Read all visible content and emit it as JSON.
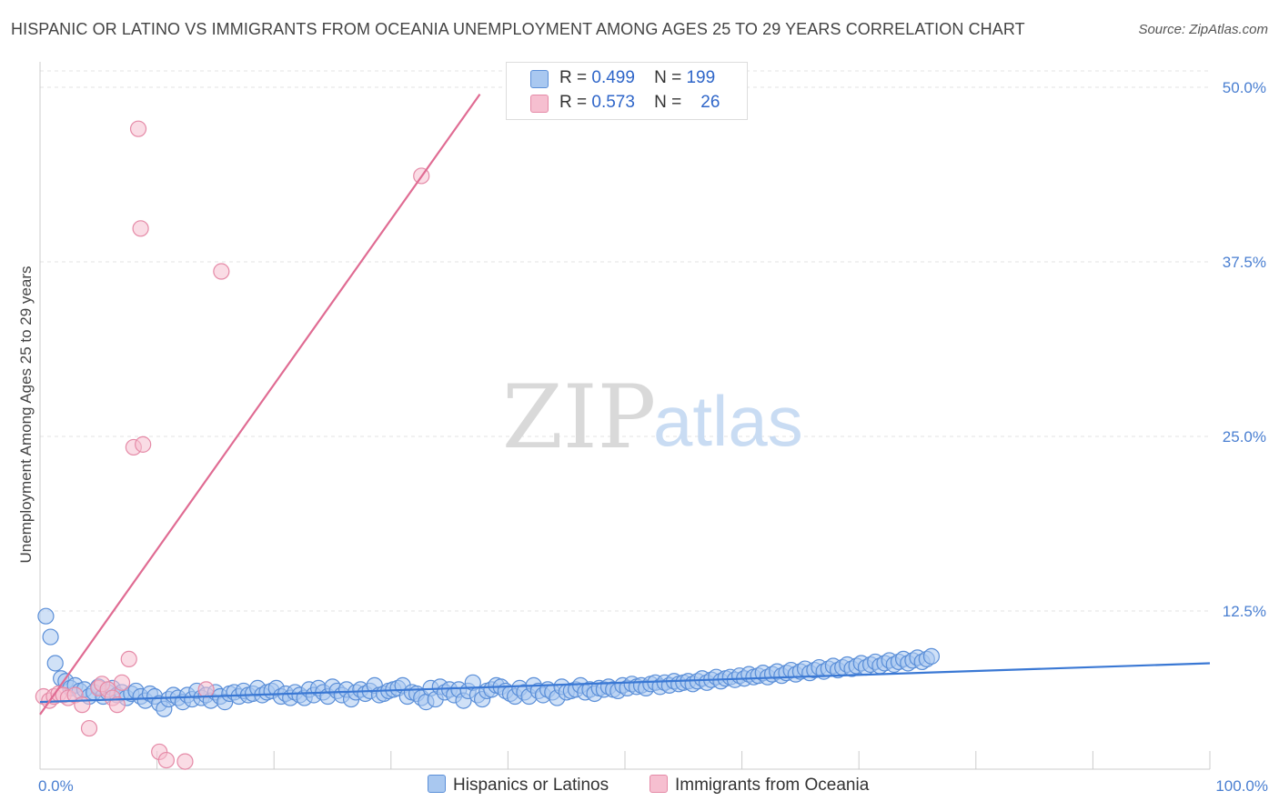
{
  "title": "HISPANIC OR LATINO VS IMMIGRANTS FROM OCEANIA UNEMPLOYMENT AMONG AGES 25 TO 29 YEARS CORRELATION CHART",
  "source": "Source: ZipAtlas.com",
  "watermark": {
    "zip": "ZIP",
    "atlas": "atlas"
  },
  "legend": {
    "rows": [
      {
        "r_label": "R =",
        "r_value": "0.499",
        "n_label": "N =",
        "n_value": "199",
        "color": "#a9c8f0",
        "edge": "#5b8fd8"
      },
      {
        "r_label": "R =",
        "r_value": "0.573",
        "n_label": "N =",
        "n_value": "26",
        "color": "#f6bfd0",
        "edge": "#e58aa7"
      }
    ]
  },
  "bottom_legend": [
    {
      "label": "Hispanics or Latinos",
      "color": "#a9c8f0",
      "edge": "#5b8fd8"
    },
    {
      "label": "Immigrants from Oceania",
      "color": "#f6bfd0",
      "edge": "#e58aa7"
    }
  ],
  "chart_data": {
    "type": "scatter",
    "title": "HISPANIC OR LATINO VS IMMIGRANTS FROM OCEANIA UNEMPLOYMENT AMONG AGES 25 TO 29 YEARS CORRELATION CHART",
    "xlabel": "",
    "ylabel": "Unemployment Among Ages 25 to 29 years",
    "xlim": [
      0,
      100
    ],
    "ylim": [
      0,
      50
    ],
    "x_ticks": [
      {
        "value": 0,
        "label": "0.0%"
      },
      {
        "value": 100,
        "label": "100.0%"
      }
    ],
    "y_ticks": [
      {
        "value": 12.5,
        "label": "12.5%"
      },
      {
        "value": 25,
        "label": "25.0%"
      },
      {
        "value": 37.5,
        "label": "37.5%"
      },
      {
        "value": 50,
        "label": "50.0%"
      }
    ],
    "grid": true,
    "legend_position": "top-center",
    "series": [
      {
        "name": "Hispanics or Latinos",
        "color": "#a9c8f0",
        "edge": "#5b8fd8",
        "line_color": "#3a78d4",
        "trend": {
          "x": [
            0,
            100
          ],
          "y": [
            6.1,
            8.9
          ]
        },
        "points": [
          [
            0.5,
            12.3
          ],
          [
            0.9,
            10.8
          ],
          [
            1.3,
            8.9
          ],
          [
            1.8,
            7.8
          ],
          [
            2.2,
            7.6
          ],
          [
            2.6,
            7.1
          ],
          [
            3.0,
            7.3
          ],
          [
            3.4,
            6.9
          ],
          [
            3.8,
            7.0
          ],
          [
            4.2,
            6.5
          ],
          [
            4.6,
            6.8
          ],
          [
            5.0,
            7.2
          ],
          [
            5.4,
            6.5
          ],
          [
            5.8,
            6.8
          ],
          [
            6.2,
            7.1
          ],
          [
            6.6,
            6.6
          ],
          [
            7.0,
            6.8
          ],
          [
            7.4,
            6.4
          ],
          [
            7.8,
            6.7
          ],
          [
            8.2,
            6.9
          ],
          [
            8.6,
            6.5
          ],
          [
            9.0,
            6.2
          ],
          [
            9.4,
            6.7
          ],
          [
            9.8,
            6.5
          ],
          [
            10.2,
            6.0
          ],
          [
            10.6,
            5.6
          ],
          [
            11.0,
            6.3
          ],
          [
            11.4,
            6.6
          ],
          [
            11.8,
            6.4
          ],
          [
            12.2,
            6.1
          ],
          [
            12.6,
            6.6
          ],
          [
            13.0,
            6.3
          ],
          [
            13.4,
            6.9
          ],
          [
            13.8,
            6.4
          ],
          [
            14.2,
            6.6
          ],
          [
            14.6,
            6.2
          ],
          [
            15.0,
            6.8
          ],
          [
            15.4,
            6.5
          ],
          [
            15.8,
            6.1
          ],
          [
            16.2,
            6.7
          ],
          [
            16.6,
            6.8
          ],
          [
            17.0,
            6.5
          ],
          [
            17.4,
            6.9
          ],
          [
            17.8,
            6.6
          ],
          [
            18.2,
            6.7
          ],
          [
            18.6,
            7.1
          ],
          [
            19.0,
            6.6
          ],
          [
            19.4,
            6.8
          ],
          [
            19.8,
            6.9
          ],
          [
            20.2,
            7.1
          ],
          [
            20.6,
            6.5
          ],
          [
            21.0,
            6.7
          ],
          [
            21.4,
            6.4
          ],
          [
            21.8,
            6.8
          ],
          [
            22.2,
            6.6
          ],
          [
            22.6,
            6.4
          ],
          [
            23.0,
            7.0
          ],
          [
            23.4,
            6.6
          ],
          [
            23.8,
            7.1
          ],
          [
            24.2,
            6.8
          ],
          [
            24.6,
            6.5
          ],
          [
            25.0,
            7.2
          ],
          [
            25.4,
            6.9
          ],
          [
            25.8,
            6.6
          ],
          [
            26.2,
            7.0
          ],
          [
            26.6,
            6.3
          ],
          [
            27.0,
            6.8
          ],
          [
            27.4,
            7.0
          ],
          [
            27.8,
            6.7
          ],
          [
            28.2,
            6.9
          ],
          [
            28.6,
            7.3
          ],
          [
            29.0,
            6.6
          ],
          [
            29.4,
            6.7
          ],
          [
            29.8,
            6.9
          ],
          [
            30.2,
            7.0
          ],
          [
            30.6,
            7.1
          ],
          [
            31.0,
            7.3
          ],
          [
            31.4,
            6.5
          ],
          [
            31.8,
            6.8
          ],
          [
            32.2,
            6.7
          ],
          [
            32.6,
            6.4
          ],
          [
            33.0,
            6.1
          ],
          [
            33.4,
            7.1
          ],
          [
            33.8,
            6.3
          ],
          [
            34.2,
            7.2
          ],
          [
            34.6,
            6.8
          ],
          [
            35.0,
            7.0
          ],
          [
            35.4,
            6.6
          ],
          [
            35.8,
            7.0
          ],
          [
            36.2,
            6.2
          ],
          [
            36.6,
            6.9
          ],
          [
            37.0,
            7.5
          ],
          [
            37.4,
            6.6
          ],
          [
            37.8,
            6.3
          ],
          [
            38.2,
            6.9
          ],
          [
            38.6,
            7.0
          ],
          [
            39.0,
            7.3
          ],
          [
            39.4,
            7.2
          ],
          [
            39.8,
            6.9
          ],
          [
            40.2,
            6.7
          ],
          [
            40.6,
            6.5
          ],
          [
            41.0,
            7.1
          ],
          [
            41.4,
            6.8
          ],
          [
            41.8,
            6.5
          ],
          [
            42.2,
            7.3
          ],
          [
            42.6,
            6.9
          ],
          [
            43.0,
            6.6
          ],
          [
            43.4,
            7.0
          ],
          [
            43.8,
            6.8
          ],
          [
            44.2,
            6.4
          ],
          [
            44.6,
            7.2
          ],
          [
            45.0,
            6.8
          ],
          [
            45.4,
            6.9
          ],
          [
            45.8,
            7.0
          ],
          [
            46.2,
            7.3
          ],
          [
            46.6,
            6.8
          ],
          [
            47.0,
            7.0
          ],
          [
            47.4,
            6.7
          ],
          [
            47.8,
            7.1
          ],
          [
            48.2,
            7.0
          ],
          [
            48.6,
            7.2
          ],
          [
            49.0,
            7.0
          ],
          [
            49.4,
            6.9
          ],
          [
            49.8,
            7.3
          ],
          [
            50.2,
            7.1
          ],
          [
            50.6,
            7.4
          ],
          [
            51.0,
            7.2
          ],
          [
            51.4,
            7.3
          ],
          [
            51.8,
            7.1
          ],
          [
            52.2,
            7.4
          ],
          [
            52.6,
            7.5
          ],
          [
            53.0,
            7.2
          ],
          [
            53.4,
            7.5
          ],
          [
            53.8,
            7.3
          ],
          [
            54.2,
            7.6
          ],
          [
            54.6,
            7.4
          ],
          [
            55.0,
            7.5
          ],
          [
            55.4,
            7.6
          ],
          [
            55.8,
            7.4
          ],
          [
            56.2,
            7.6
          ],
          [
            56.6,
            7.8
          ],
          [
            57.0,
            7.5
          ],
          [
            57.4,
            7.7
          ],
          [
            57.8,
            7.9
          ],
          [
            58.2,
            7.6
          ],
          [
            58.6,
            7.8
          ],
          [
            59.0,
            7.9
          ],
          [
            59.4,
            7.7
          ],
          [
            59.8,
            8.0
          ],
          [
            60.2,
            7.8
          ],
          [
            60.6,
            8.1
          ],
          [
            61.0,
            7.9
          ],
          [
            61.4,
            8.0
          ],
          [
            61.8,
            8.2
          ],
          [
            62.2,
            7.9
          ],
          [
            62.6,
            8.1
          ],
          [
            63.0,
            8.3
          ],
          [
            63.4,
            8.0
          ],
          [
            63.8,
            8.2
          ],
          [
            64.2,
            8.4
          ],
          [
            64.6,
            8.1
          ],
          [
            65.0,
            8.3
          ],
          [
            65.4,
            8.5
          ],
          [
            65.8,
            8.2
          ],
          [
            66.2,
            8.4
          ],
          [
            66.6,
            8.6
          ],
          [
            67.0,
            8.3
          ],
          [
            67.4,
            8.5
          ],
          [
            67.8,
            8.7
          ],
          [
            68.2,
            8.4
          ],
          [
            68.6,
            8.6
          ],
          [
            69.0,
            8.8
          ],
          [
            69.4,
            8.5
          ],
          [
            69.8,
            8.7
          ],
          [
            70.2,
            8.9
          ],
          [
            70.6,
            8.6
          ],
          [
            71.0,
            8.8
          ],
          [
            71.4,
            9.0
          ],
          [
            71.8,
            8.7
          ],
          [
            72.2,
            8.9
          ],
          [
            72.6,
            9.1
          ],
          [
            73.0,
            8.8
          ],
          [
            73.4,
            9.0
          ],
          [
            73.8,
            9.2
          ],
          [
            74.2,
            8.9
          ],
          [
            74.6,
            9.1
          ],
          [
            75.0,
            9.3
          ],
          [
            75.4,
            9.0
          ],
          [
            75.8,
            9.2
          ],
          [
            76.2,
            9.4
          ]
        ]
      },
      {
        "name": "Immigrants from Oceania",
        "color": "#f6bfd0",
        "edge": "#e58aa7",
        "line_color": "#e06c93",
        "trend": {
          "x": [
            0,
            37.6
          ],
          "y": [
            5.2,
            50.0
          ]
        },
        "points": [
          [
            0.3,
            6.5
          ],
          [
            0.8,
            6.2
          ],
          [
            1.2,
            6.5
          ],
          [
            1.6,
            6.7
          ],
          [
            2.0,
            6.6
          ],
          [
            2.4,
            6.4
          ],
          [
            3.0,
            6.6
          ],
          [
            3.6,
            5.9
          ],
          [
            4.2,
            4.2
          ],
          [
            5.0,
            7.1
          ],
          [
            5.3,
            7.4
          ],
          [
            5.8,
            7.0
          ],
          [
            6.2,
            6.4
          ],
          [
            6.6,
            5.9
          ],
          [
            7.0,
            7.5
          ],
          [
            7.6,
            9.2
          ],
          [
            8.0,
            24.5
          ],
          [
            8.4,
            47.5
          ],
          [
            8.6,
            40.3
          ],
          [
            8.8,
            24.7
          ],
          [
            10.2,
            2.5
          ],
          [
            10.8,
            1.9
          ],
          [
            12.4,
            1.8
          ],
          [
            14.2,
            7.0
          ],
          [
            15.5,
            37.2
          ],
          [
            32.6,
            44.1
          ]
        ]
      }
    ]
  }
}
